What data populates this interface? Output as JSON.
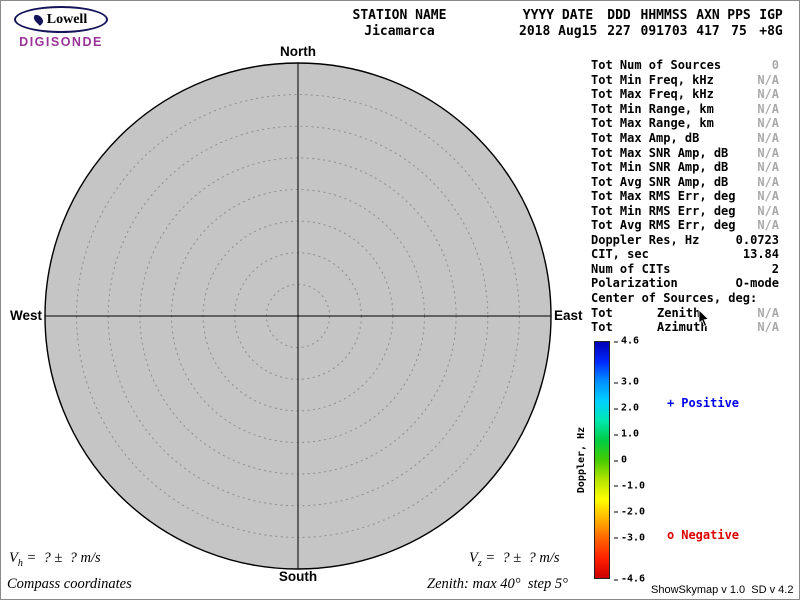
{
  "colors": {
    "brand": "#993399",
    "positive": "#0000ee",
    "negative": "#dd0000",
    "na_gray": "#a9a9a9"
  },
  "logo": {
    "brand": "Lowell",
    "product": "DIGISONDE"
  },
  "header": {
    "columns": [
      {
        "h": "STATION NAME",
        "v": "Jicamarca"
      },
      {
        "h": "YYYY DATE",
        "v": "2018 Aug15"
      },
      {
        "h": "DDD",
        "v": "227"
      },
      {
        "h": "HHMMSS",
        "v": "091703"
      },
      {
        "h": "AXN",
        "v": "417"
      },
      {
        "h": "PPS",
        "v": "75"
      },
      {
        "h": "IGP",
        "v": "+8G"
      }
    ]
  },
  "skymap": {
    "north": "North",
    "south": "South",
    "west": "West",
    "east": "East",
    "max_zenith_deg": 40,
    "step_deg": 5
  },
  "stats": {
    "rows": [
      {
        "label": "Tot Num of Sources",
        "value": "0",
        "vc": "na"
      },
      {
        "label": "Tot Min Freq, kHz",
        "value": "N/A",
        "vc": "na"
      },
      {
        "label": "Tot Max Freq, kHz",
        "value": "N/A",
        "vc": "na"
      },
      {
        "label": "Tot Min Range, km",
        "value": "N/A",
        "vc": "na"
      },
      {
        "label": "Tot Max Range, km",
        "value": "N/A",
        "vc": "na"
      },
      {
        "label": "Tot Max Amp, dB",
        "value": "N/A",
        "vc": "na"
      },
      {
        "label": "Tot Max SNR Amp, dB",
        "value": "N/A",
        "vc": "na"
      },
      {
        "label": "Tot Min SNR Amp, dB",
        "value": "N/A",
        "vc": "na"
      },
      {
        "label": "Tot Avg SNR Amp, dB",
        "value": "N/A",
        "vc": "na"
      },
      {
        "label": "Tot Max RMS Err, deg",
        "value": "N/A",
        "vc": "na"
      },
      {
        "label": "Tot Min RMS Err, deg",
        "value": "N/A",
        "vc": "na"
      },
      {
        "label": "Tot Avg RMS Err, deg",
        "value": "N/A",
        "vc": "na"
      },
      {
        "label": "Doppler Res, Hz",
        "value": "0.0723",
        "vc": "ok"
      },
      {
        "label": "CIT, sec",
        "value": "13.84",
        "vc": "ok"
      },
      {
        "label": "Num of CITs",
        "value": "2",
        "vc": "ok"
      },
      {
        "label": "Polarization",
        "value": "O-mode",
        "vc": "ok"
      },
      {
        "label": "Center of Sources, deg:",
        "value": "",
        "vc": "ok"
      },
      {
        "label": "Tot",
        "mid": "Zenith",
        "value": "N/A",
        "vc": "na"
      },
      {
        "label": "Tot",
        "mid": "Azimuth",
        "value": "N/A",
        "vc": "na"
      }
    ]
  },
  "colorbar": {
    "label": "Doppler, Hz",
    "max": 4.6,
    "min": -4.6,
    "ticks": [
      "4.6",
      "3.0",
      "2.0",
      "1.0",
      "0",
      "-1.0",
      "-2.0",
      "-3.0",
      "-4.6"
    ],
    "gradient": [
      "#0000b4",
      "#0028ff",
      "#0090ff",
      "#00d0ff",
      "#00e8b0",
      "#00cc44",
      "#44cc00",
      "#b4e400",
      "#ffff00",
      "#ffb400",
      "#ff6400",
      "#ff2000",
      "#cc0000"
    ]
  },
  "legend": {
    "positive": {
      "marker": "+",
      "label": "Positive"
    },
    "negative": {
      "marker": "o",
      "label": "Negative"
    }
  },
  "footer": {
    "vh": {
      "var": "V",
      "sub": "h",
      "expr": " =  ? ±  ? m/s"
    },
    "vz": {
      "var": "V",
      "sub": "z",
      "expr": " =  ? ±  ? m/s"
    },
    "coords_label": "Compass coordinates",
    "zenith_label": "Zenith: max 40°  step 5°",
    "version": "ShowSkymap v 1.0  SD v 4.2"
  }
}
